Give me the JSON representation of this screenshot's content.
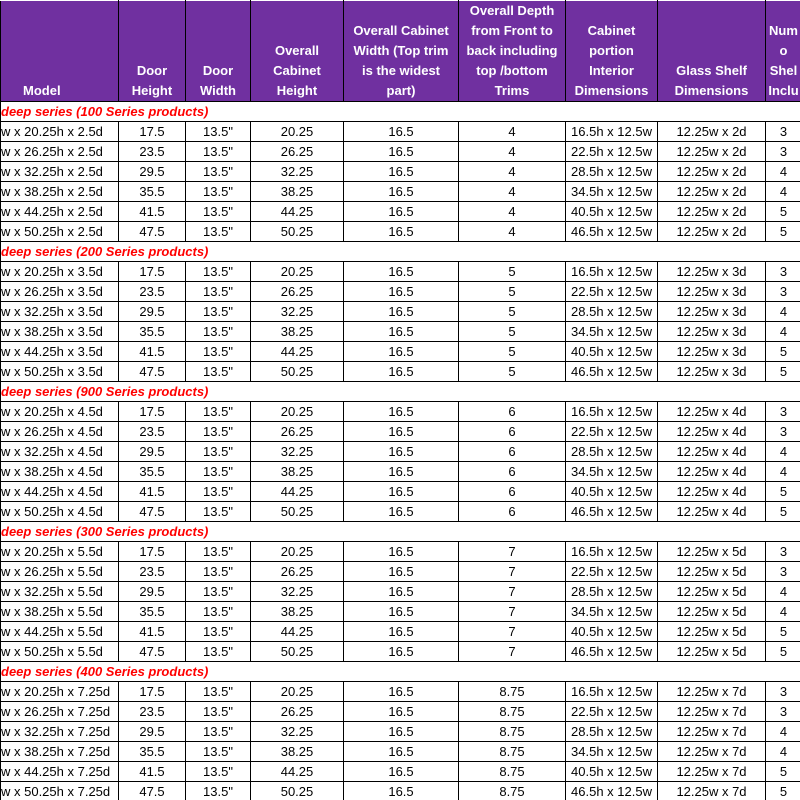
{
  "header": {
    "columns": [
      {
        "lines": [
          "Model"
        ]
      },
      {
        "lines": [
          "Door",
          "Height"
        ]
      },
      {
        "lines": [
          "Door",
          "Width"
        ]
      },
      {
        "lines": [
          "Overall",
          "Cabinet",
          "Height"
        ]
      },
      {
        "lines": [
          "Overall Cabinet",
          "Width (Top trim",
          "is the widest",
          "part)"
        ]
      },
      {
        "lines": [
          "Overall Depth",
          "from Front to",
          "back including",
          "top /bottom",
          "Trims"
        ]
      },
      {
        "lines": [
          "Cabinet",
          "portion",
          "Interior",
          "Dimensions"
        ]
      },
      {
        "lines": [
          "Glass Shelf",
          "Dimensions"
        ]
      },
      {
        "lines": [
          "Num",
          "o",
          "Shel",
          "Inclu"
        ]
      }
    ]
  },
  "sections": [
    {
      "title": "deep series (100 Series products)",
      "rows": [
        [
          "w x 20.25h x 2.5d",
          "17.5",
          "13.5\"",
          "20.25",
          "16.5",
          "4",
          "16.5h x 12.5w",
          "12.25w x 2d",
          "3"
        ],
        [
          "w x 26.25h x 2.5d",
          "23.5",
          "13.5\"",
          "26.25",
          "16.5",
          "4",
          "22.5h x 12.5w",
          "12.25w x 2d",
          "3"
        ],
        [
          "w x 32.25h x 2.5d",
          "29.5",
          "13.5\"",
          "32.25",
          "16.5",
          "4",
          "28.5h x 12.5w",
          "12.25w x 2d",
          "4"
        ],
        [
          "w x 38.25h x 2.5d",
          "35.5",
          "13.5\"",
          "38.25",
          "16.5",
          "4",
          "34.5h x 12.5w",
          "12.25w x 2d",
          "4"
        ],
        [
          "w x 44.25h x 2.5d",
          "41.5",
          "13.5\"",
          "44.25",
          "16.5",
          "4",
          "40.5h x 12.5w",
          "12.25w x 2d",
          "5"
        ],
        [
          "w x 50.25h x 2.5d",
          "47.5",
          "13.5\"",
          "50.25",
          "16.5",
          "4",
          "46.5h x 12.5w",
          "12.25w x 2d",
          "5"
        ]
      ]
    },
    {
      "title": "deep series (200 Series products)",
      "rows": [
        [
          "w x 20.25h x 3.5d",
          "17.5",
          "13.5\"",
          "20.25",
          "16.5",
          "5",
          "16.5h x 12.5w",
          "12.25w x 3d",
          "3"
        ],
        [
          "w x 26.25h x 3.5d",
          "23.5",
          "13.5\"",
          "26.25",
          "16.5",
          "5",
          "22.5h x 12.5w",
          "12.25w x 3d",
          "3"
        ],
        [
          "w x 32.25h x 3.5d",
          "29.5",
          "13.5\"",
          "32.25",
          "16.5",
          "5",
          "28.5h x 12.5w",
          "12.25w x 3d",
          "4"
        ],
        [
          "w x 38.25h x 3.5d",
          "35.5",
          "13.5\"",
          "38.25",
          "16.5",
          "5",
          "34.5h x 12.5w",
          "12.25w x 3d",
          "4"
        ],
        [
          "w x 44.25h x 3.5d",
          "41.5",
          "13.5\"",
          "44.25",
          "16.5",
          "5",
          "40.5h x 12.5w",
          "12.25w x 3d",
          "5"
        ],
        [
          "w x 50.25h x 3.5d",
          "47.5",
          "13.5\"",
          "50.25",
          "16.5",
          "5",
          "46.5h x 12.5w",
          "12.25w x 3d",
          "5"
        ]
      ]
    },
    {
      "title": "deep series (900 Series products)",
      "rows": [
        [
          "w x 20.25h x 4.5d",
          "17.5",
          "13.5\"",
          "20.25",
          "16.5",
          "6",
          "16.5h x 12.5w",
          "12.25w x 4d",
          "3"
        ],
        [
          "w x 26.25h x 4.5d",
          "23.5",
          "13.5\"",
          "26.25",
          "16.5",
          "6",
          "22.5h x 12.5w",
          "12.25w x 4d",
          "3"
        ],
        [
          "w x 32.25h x 4.5d",
          "29.5",
          "13.5\"",
          "32.25",
          "16.5",
          "6",
          "28.5h x 12.5w",
          "12.25w x 4d",
          "4"
        ],
        [
          "w x 38.25h x 4.5d",
          "35.5",
          "13.5\"",
          "38.25",
          "16.5",
          "6",
          "34.5h x 12.5w",
          "12.25w x 4d",
          "4"
        ],
        [
          "w x 44.25h x 4.5d",
          "41.5",
          "13.5\"",
          "44.25",
          "16.5",
          "6",
          "40.5h x 12.5w",
          "12.25w x 4d",
          "5"
        ],
        [
          "w x 50.25h x 4.5d",
          "47.5",
          "13.5\"",
          "50.25",
          "16.5",
          "6",
          "46.5h x 12.5w",
          "12.25w x 4d",
          "5"
        ]
      ]
    },
    {
      "title": "deep series (300 Series products)",
      "rows": [
        [
          "w x 20.25h x 5.5d",
          "17.5",
          "13.5\"",
          "20.25",
          "16.5",
          "7",
          "16.5h x 12.5w",
          "12.25w x 5d",
          "3"
        ],
        [
          "w x 26.25h x 5.5d",
          "23.5",
          "13.5\"",
          "26.25",
          "16.5",
          "7",
          "22.5h x 12.5w",
          "12.25w x 5d",
          "3"
        ],
        [
          "w x 32.25h x 5.5d",
          "29.5",
          "13.5\"",
          "32.25",
          "16.5",
          "7",
          "28.5h x 12.5w",
          "12.25w x 5d",
          "4"
        ],
        [
          "w x 38.25h x 5.5d",
          "35.5",
          "13.5\"",
          "38.25",
          "16.5",
          "7",
          "34.5h x 12.5w",
          "12.25w x 5d",
          "4"
        ],
        [
          "w x 44.25h x 5.5d",
          "41.5",
          "13.5\"",
          "44.25",
          "16.5",
          "7",
          "40.5h x 12.5w",
          "12.25w x 5d",
          "5"
        ],
        [
          "w x 50.25h x 5.5d",
          "47.5",
          "13.5\"",
          "50.25",
          "16.5",
          "7",
          "46.5h x 12.5w",
          "12.25w x 5d",
          "5"
        ]
      ]
    },
    {
      "title": "deep series (400 Series products)",
      "rows": [
        [
          "w x 20.25h x 7.25d",
          "17.5",
          "13.5\"",
          "20.25",
          "16.5",
          "8.75",
          "16.5h x 12.5w",
          "12.25w x 7d",
          "3"
        ],
        [
          "w x 26.25h x 7.25d",
          "23.5",
          "13.5\"",
          "26.25",
          "16.5",
          "8.75",
          "22.5h x 12.5w",
          "12.25w x 7d",
          "3"
        ],
        [
          "w x 32.25h x 7.25d",
          "29.5",
          "13.5\"",
          "32.25",
          "16.5",
          "8.75",
          "28.5h x 12.5w",
          "12.25w x 7d",
          "4"
        ],
        [
          "w x 38.25h x 7.25d",
          "35.5",
          "13.5\"",
          "38.25",
          "16.5",
          "8.75",
          "34.5h x 12.5w",
          "12.25w x 7d",
          "4"
        ],
        [
          "w x 44.25h x 7.25d",
          "41.5",
          "13.5\"",
          "44.25",
          "16.5",
          "8.75",
          "40.5h x 12.5w",
          "12.25w x 7d",
          "5"
        ],
        [
          "w x 50.25h x 7.25d",
          "47.5",
          "13.5\"",
          "50.25",
          "16.5",
          "8.75",
          "46.5h x 12.5w",
          "12.25w x 7d",
          "5"
        ]
      ]
    }
  ]
}
